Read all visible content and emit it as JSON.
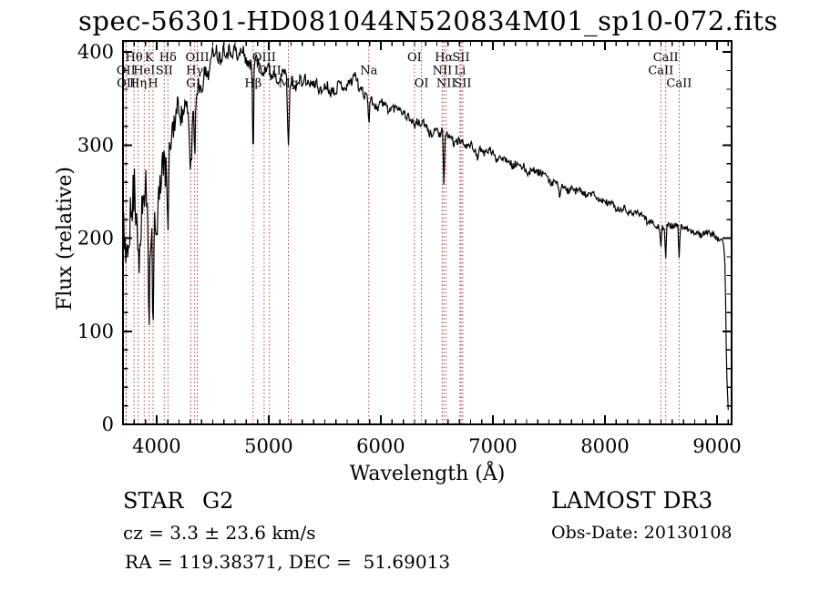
{
  "title": "spec-56301-HD081044N520834M01_sp10-072.fits",
  "colors": {
    "background": "#ffffff",
    "ink": "#000000",
    "spectrum": "#000000",
    "line_marker": "#a3403a"
  },
  "axes": {
    "xlabel": "Wavelength (Å)",
    "ylabel": "Flux (relative)",
    "x_ticks": [
      "4000",
      "5000",
      "6000",
      "7000",
      "8000",
      "9000"
    ],
    "y_ticks": [
      "0",
      "100",
      "200",
      "300",
      "400"
    ]
  },
  "annotations": {
    "star_class": "STAR",
    "subclass": "G2",
    "cz": "cz = 3.3 ± 23.6 km/s",
    "radec": "RA = 119.38371, DEC =  51.69013",
    "survey": "LAMOST DR3",
    "obs_date": "Obs-Date: 20130108"
  },
  "spectral_lines": [
    {
      "label": "OII",
      "wavelength": 3727,
      "row": 2
    },
    {
      "label": "OII",
      "wavelength": 3729,
      "row": 3
    },
    {
      "label": "Hθ",
      "wavelength": 3798,
      "row": 1
    },
    {
      "label": "Hη",
      "wavelength": 3835,
      "row": 3
    },
    {
      "label": "HeI",
      "wavelength": 3889,
      "row": 2
    },
    {
      "label": "K",
      "wavelength": 3933,
      "row": 1
    },
    {
      "label": "H",
      "wavelength": 3968,
      "row": 3
    },
    {
      "label": "SII",
      "wavelength": 4068,
      "row": 2
    },
    {
      "label": "Hδ",
      "wavelength": 4101,
      "row": 1
    },
    {
      "label": "G",
      "wavelength": 4305,
      "row": 3
    },
    {
      "label": "Hγ",
      "wavelength": 4340,
      "row": 2
    },
    {
      "label": "OIII",
      "wavelength": 4363,
      "row": 1
    },
    {
      "label": "Hβ",
      "wavelength": 4861,
      "row": 3
    },
    {
      "label": "OIII",
      "wavelength": 4959,
      "row": 1
    },
    {
      "label": "OIII",
      "wavelength": 5007,
      "row": 2
    },
    {
      "label": "Mg",
      "wavelength": 5175,
      "row": 3
    },
    {
      "label": "Na",
      "wavelength": 5893,
      "row": 2
    },
    {
      "label": "OI",
      "wavelength": 6300,
      "row": 1
    },
    {
      "label": "OI",
      "wavelength": 6363,
      "row": 3
    },
    {
      "label": "NII",
      "wavelength": 6548,
      "row": 2
    },
    {
      "label": "Hα",
      "wavelength": 6563,
      "row": 1
    },
    {
      "label": "NII",
      "wavelength": 6583,
      "row": 3
    },
    {
      "label": "Li",
      "wavelength": 6707,
      "row": 2
    },
    {
      "label": "SII",
      "wavelength": 6716,
      "row": 1
    },
    {
      "label": "SII",
      "wavelength": 6731,
      "row": 3
    },
    {
      "label": "CaII",
      "wavelength": 8498,
      "row": 2
    },
    {
      "label": "CaII",
      "wavelength": 8542,
      "row": 1
    },
    {
      "label": "CaII",
      "wavelength": 8662,
      "row": 3
    }
  ],
  "chart_data": {
    "type": "line",
    "title": "spec-56301-HD081044N520834M01_sp10-072.fits",
    "xlabel": "Wavelength (Å)",
    "ylabel": "Flux (relative)",
    "xlim": [
      3700,
      9130
    ],
    "ylim": [
      0,
      412
    ],
    "x_tick_values": [
      4000,
      5000,
      6000,
      7000,
      8000,
      9000
    ],
    "y_tick_values": [
      0,
      100,
      200,
      300,
      400
    ],
    "x_minor_step": 100,
    "y_minor_step": 20,
    "grid": false,
    "legend": "none",
    "series": [
      {
        "name": "flux",
        "continuum_points": [
          [
            3700,
            90
          ],
          [
            3704,
            250
          ],
          [
            3712,
            160
          ],
          [
            3730,
            185
          ],
          [
            3760,
            205
          ],
          [
            3800,
            215
          ],
          [
            3840,
            220
          ],
          [
            3880,
            235
          ],
          [
            3910,
            240
          ],
          [
            3933,
            235
          ],
          [
            3960,
            215
          ],
          [
            3990,
            190
          ],
          [
            4020,
            230
          ],
          [
            4060,
            285
          ],
          [
            4100,
            305
          ],
          [
            4140,
            325
          ],
          [
            4180,
            340
          ],
          [
            4230,
            345
          ],
          [
            4280,
            330
          ],
          [
            4330,
            340
          ],
          [
            4380,
            360
          ],
          [
            4430,
            375
          ],
          [
            4480,
            392
          ],
          [
            4540,
            398
          ],
          [
            4620,
            402
          ],
          [
            4700,
            398
          ],
          [
            4780,
            394
          ],
          [
            4861,
            392
          ],
          [
            4940,
            384
          ],
          [
            5020,
            379
          ],
          [
            5100,
            375
          ],
          [
            5180,
            372
          ],
          [
            5260,
            367
          ],
          [
            5340,
            368
          ],
          [
            5420,
            364
          ],
          [
            5500,
            362
          ],
          [
            5580,
            361
          ],
          [
            5660,
            360
          ],
          [
            5740,
            366
          ],
          [
            5772,
            378
          ],
          [
            5800,
            365
          ],
          [
            5860,
            356
          ],
          [
            5893,
            352
          ],
          [
            5950,
            346
          ],
          [
            6050,
            342
          ],
          [
            6150,
            337
          ],
          [
            6250,
            329
          ],
          [
            6350,
            321
          ],
          [
            6450,
            315
          ],
          [
            6550,
            311
          ],
          [
            6650,
            306
          ],
          [
            6750,
            301
          ],
          [
            6850,
            297
          ],
          [
            6950,
            292
          ],
          [
            7050,
            287
          ],
          [
            7150,
            282
          ],
          [
            7250,
            277
          ],
          [
            7350,
            272
          ],
          [
            7450,
            266
          ],
          [
            7550,
            260
          ],
          [
            7650,
            255
          ],
          [
            7750,
            251
          ],
          [
            7850,
            247
          ],
          [
            7950,
            242
          ],
          [
            8050,
            237
          ],
          [
            8150,
            232
          ],
          [
            8250,
            227
          ],
          [
            8350,
            222
          ],
          [
            8450,
            216
          ],
          [
            8550,
            212
          ],
          [
            8650,
            212
          ],
          [
            8750,
            209
          ],
          [
            8850,
            206
          ],
          [
            8950,
            203
          ],
          [
            9030,
            199
          ],
          [
            9060,
            194
          ],
          [
            9072,
            170
          ],
          [
            9085,
            60
          ],
          [
            9100,
            10
          ]
        ],
        "absorption_dips": [
          {
            "center": 3933,
            "depth": 110,
            "width": 6
          },
          {
            "center": 3968,
            "depth": 115,
            "width": 6
          },
          {
            "center": 4101,
            "depth": 80,
            "width": 6
          },
          {
            "center": 4305,
            "depth": 60,
            "width": 10
          },
          {
            "center": 4340,
            "depth": 60,
            "width": 6
          },
          {
            "center": 4861,
            "depth": 100,
            "width": 5
          },
          {
            "center": 5175,
            "depth": 68,
            "width": 8
          },
          {
            "center": 5893,
            "depth": 28,
            "width": 5
          },
          {
            "center": 6563,
            "depth": 55,
            "width": 5
          },
          {
            "center": 6867,
            "depth": 10,
            "width": 8
          },
          {
            "center": 7594,
            "depth": 10,
            "width": 8
          },
          {
            "center": 8498,
            "depth": 22,
            "width": 5
          },
          {
            "center": 8542,
            "depth": 35,
            "width": 5
          },
          {
            "center": 8662,
            "depth": 35,
            "width": 5
          }
        ],
        "noise_low_amp": [
          [
            3700,
            62
          ],
          [
            3950,
            62
          ],
          [
            4000,
            45
          ],
          [
            4120,
            32
          ],
          [
            4300,
            16
          ],
          [
            4500,
            9
          ],
          [
            4800,
            8
          ],
          [
            5300,
            7
          ],
          [
            5800,
            6
          ],
          [
            6300,
            5
          ],
          [
            7000,
            4
          ],
          [
            8000,
            4
          ],
          [
            9130,
            3
          ]
        ],
        "noise_high_amp": [
          [
            3700,
            30
          ],
          [
            3980,
            26
          ],
          [
            4100,
            18
          ],
          [
            4300,
            11
          ],
          [
            4600,
            8
          ],
          [
            5200,
            6
          ],
          [
            6000,
            5
          ],
          [
            7000,
            4
          ],
          [
            9130,
            3
          ]
        ],
        "noise_seed": 11
      }
    ]
  }
}
